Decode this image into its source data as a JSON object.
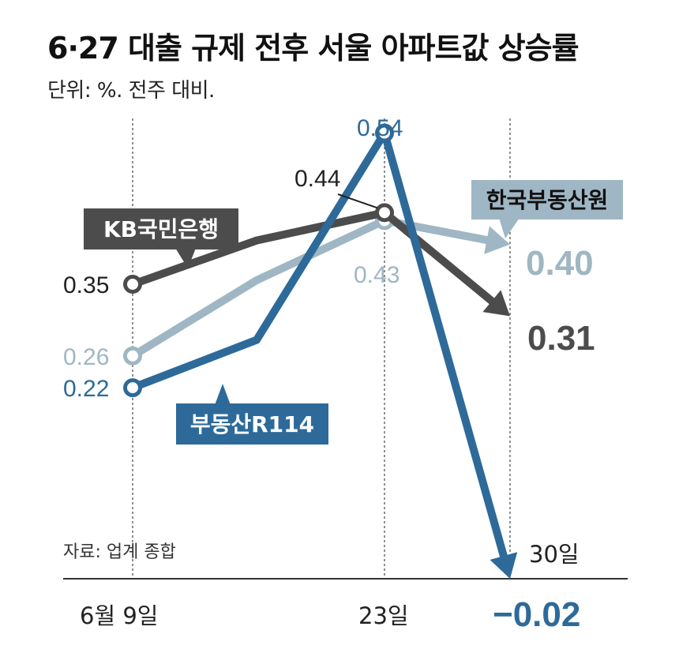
{
  "title": "6·27 대출 규제 전후 서울 아파트값 상승률",
  "unit_note": "단위: %. 전주 대비.",
  "source": "자료: 업계 종합",
  "colors": {
    "kb": "#4c4c4c",
    "reb": "#9fb6c4",
    "r114": "#2d6a99",
    "axis": "#333333",
    "grid": "#555555"
  },
  "chart_data": {
    "type": "line",
    "x": [
      "6월 9일",
      "23일",
      "30일"
    ],
    "series": [
      {
        "name": "KB국민은행",
        "values": [
          0.35,
          0.44,
          0.31
        ],
        "color": "#4c4c4c"
      },
      {
        "name": "한국부동산원",
        "values": [
          0.26,
          0.43,
          0.4
        ],
        "color": "#9fb6c4"
      },
      {
        "name": "부동산R114",
        "values": [
          0.22,
          0.54,
          -0.02
        ],
        "color": "#2d6a99"
      }
    ],
    "point_labels": {
      "KB국민은행": [
        "0.35",
        "0.44",
        "0.31"
      ],
      "한국부동산원": [
        "0.26",
        "0.43",
        "0.40"
      ],
      "부동산R114": [
        "0.22",
        "0.54",
        "−0.02"
      ]
    },
    "ylim": [
      -0.02,
      0.56
    ],
    "grid": false,
    "legend": "callout labels on lines"
  }
}
